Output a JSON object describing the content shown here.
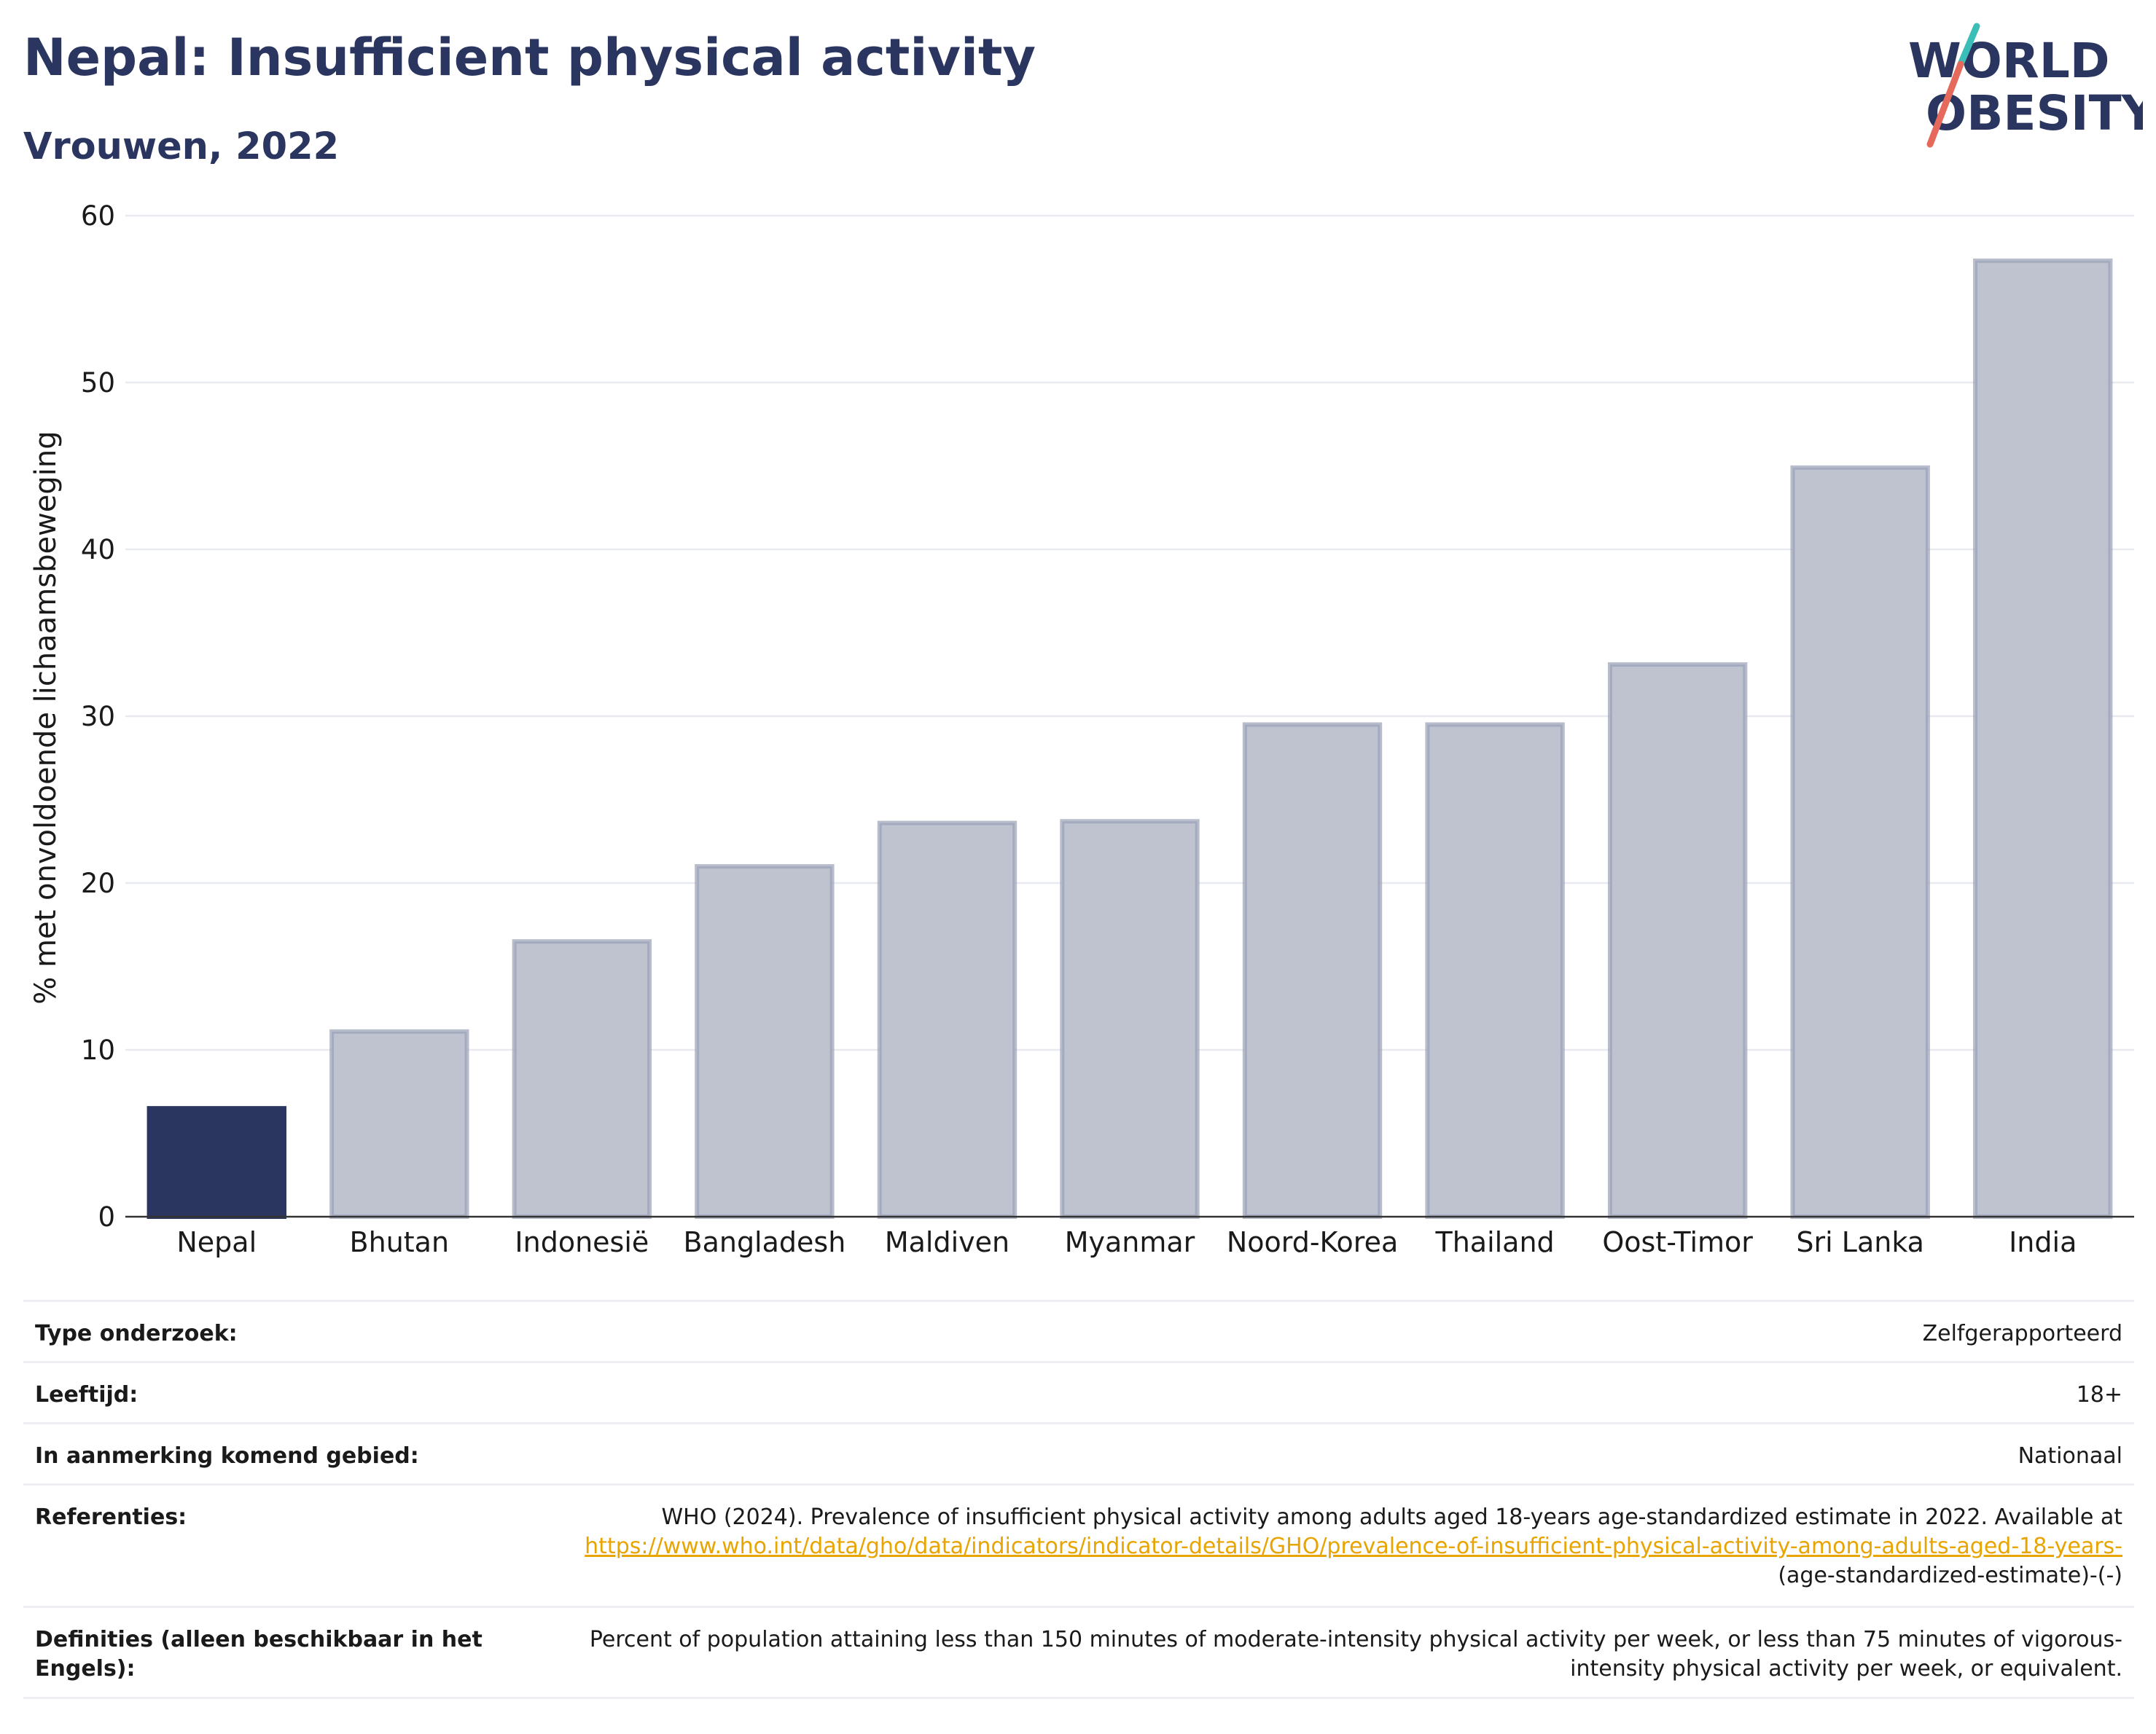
{
  "header": {
    "title": "Nepal: Insufficient physical activity",
    "subtitle": "Vrouwen, 2022",
    "logo_line1": "WORLD",
    "logo_line2": "OBESITY"
  },
  "chart_data": {
    "type": "bar",
    "categories": [
      "Nepal",
      "Bhutan",
      "Indonesië",
      "Bangladesh",
      "Maldiven",
      "Myanmar",
      "Noord-Korea",
      "Thailand",
      "Oost-Timor",
      "Sri Lanka",
      "India"
    ],
    "values": [
      6.5,
      11.1,
      16.5,
      21.0,
      23.6,
      23.7,
      29.5,
      29.5,
      33.1,
      44.9,
      57.3
    ],
    "highlight": "Nepal",
    "xlabel": "",
    "ylabel": "% met onvoldoende lichaamsbeweging",
    "ylim": [
      0,
      60
    ],
    "yticks": [
      0,
      10,
      20,
      30,
      40,
      50,
      60
    ],
    "grid": true,
    "colors": {
      "highlight": "#2b3660",
      "bar_fill": "#bfc3d0",
      "bar_stroke": "#9aa1b6",
      "grid": "#e8eaef",
      "axis": "#333333"
    }
  },
  "info_table": {
    "rows": [
      {
        "label": "Type onderzoek:",
        "value": "Zelfgerapporteerd"
      },
      {
        "label": "Leeftijd:",
        "value": "18+"
      },
      {
        "label": "In aanmerking komend gebied:",
        "value": "Nationaal"
      }
    ],
    "references": {
      "label": "Referenties:",
      "text": "WHO (2024). Prevalence of insufficient physical activity among adults aged 18-years age-standardized estimate in 2022. Available at",
      "link": "https://www.who.int/data/gho/data/indicators/indicator-details/GHO/prevalence-of-insufficient-physical-activity-among-adults-aged-18-years-",
      "link_tail": "(age-standardized-estimate)-(-)"
    },
    "definitions": {
      "label": "Definities (alleen beschikbaar in het Engels):",
      "text": "Percent of population attaining less than 150 minutes of moderate-intensity physical activity per week, or less than 75 minutes of vigorous-intensity physical activity per week, or equivalent."
    }
  }
}
